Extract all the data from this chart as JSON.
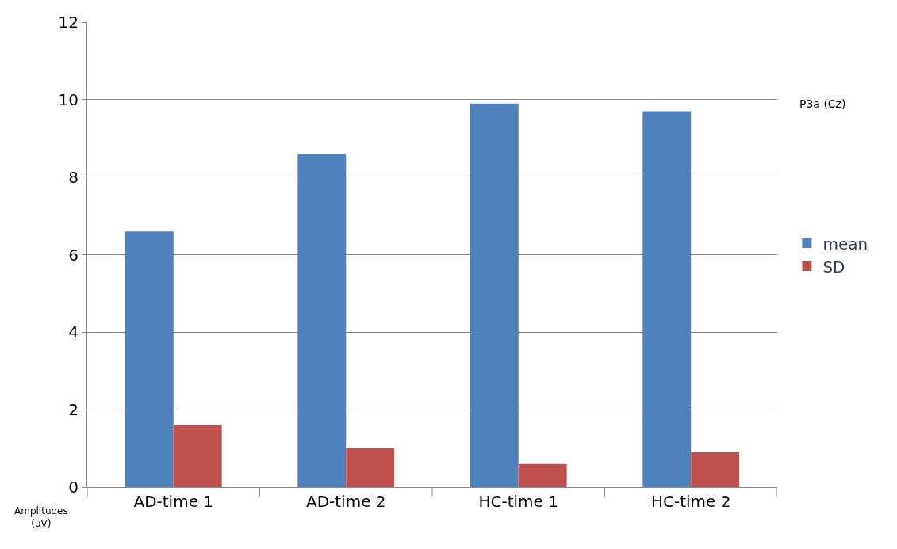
{
  "chart_data": {
    "type": "bar",
    "categories": [
      "AD-time 1",
      "AD-time 2",
      "HC-time 1",
      "HC-time 2"
    ],
    "series": [
      {
        "name": "mean",
        "color": "#4f81bd",
        "values": [
          6.6,
          8.6,
          9.9,
          9.7
        ]
      },
      {
        "name": "SD",
        "color": "#c0504d",
        "values": [
          1.6,
          1.0,
          0.6,
          0.9
        ]
      }
    ],
    "ylim": [
      0,
      12
    ],
    "yticks": [
      0,
      2,
      4,
      6,
      8,
      10,
      12
    ],
    "grid": "y",
    "legend": "right",
    "annotations": [
      "P3a (Cz)",
      "Amplitudes\n(µV)"
    ]
  }
}
